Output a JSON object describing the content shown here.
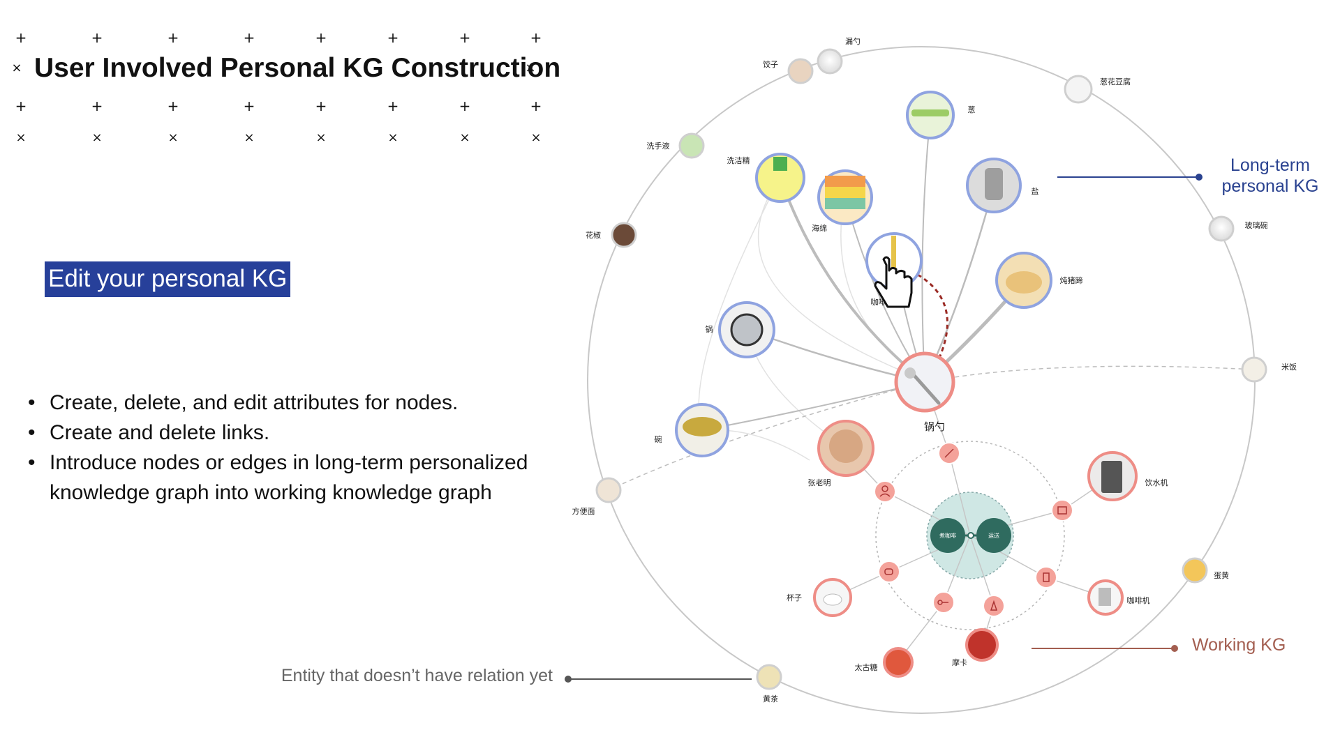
{
  "title": "User Involved Personal KG Construction",
  "marks": {
    "plus": "+",
    "times": "×"
  },
  "edit_label": "Edit your personal KG",
  "bullets": [
    "Create, delete, and edit attributes for nodes.",
    "Create and delete links.",
    "Introduce nodes or edges in long-term personalized knowledge graph into working knowledge graph"
  ],
  "annotations": {
    "long_term": "Long-term personal KG",
    "working": "Working KG",
    "no_relation": "Entity that doesn’t have relation yet"
  },
  "colors": {
    "title_text": "#111111",
    "edit_box_bg": "#27409a",
    "long_term_blue": "#2a4290",
    "working_red": "#a35e50",
    "node_ring_blue": "#8fa3e0",
    "node_ring_red": "#ee8d86",
    "cluster_fill": "#cfe7e4",
    "cluster_dark": "#2f6b5f",
    "dashed_link": "#9a2a24"
  },
  "graph": {
    "outer_nodes": [
      {
        "id": "lou-shao",
        "label": "漏勺"
      },
      {
        "id": "jiaozi",
        "label": "饺子"
      },
      {
        "id": "conghua-doufu",
        "label": "葱花豆腐"
      },
      {
        "id": "xishouye",
        "label": "洗手液"
      },
      {
        "id": "huajiao",
        "label": "花椒"
      },
      {
        "id": "boli-wan",
        "label": "玻璃碗"
      },
      {
        "id": "mifan",
        "label": "米饭"
      },
      {
        "id": "fangbianmian",
        "label": "方便面"
      },
      {
        "id": "danhuang",
        "label": "蛋黄"
      },
      {
        "id": "huangcha",
        "label": "黄茶"
      }
    ],
    "personal_nodes": [
      {
        "id": "cong",
        "label": "葱"
      },
      {
        "id": "xijiejing",
        "label": "洗洁精"
      },
      {
        "id": "haimian",
        "label": "海绵"
      },
      {
        "id": "yan",
        "label": "盐"
      },
      {
        "id": "kafei-shao",
        "label": "咖啡勺"
      },
      {
        "id": "dun-zhuti",
        "label": "炖猪蹄"
      },
      {
        "id": "guo",
        "label": "锅"
      },
      {
        "id": "wan",
        "label": "碗"
      }
    ],
    "center_node": {
      "id": "guo-shao",
      "label": "锅勺"
    },
    "working_nodes": [
      {
        "id": "zhang",
        "label": "张老明"
      },
      {
        "id": "yinshuiji",
        "label": "饮水机"
      },
      {
        "id": "beizi",
        "label": "杯子"
      },
      {
        "id": "kafeiji",
        "label": "咖啡机"
      },
      {
        "id": "taigutang",
        "label": "太古糖"
      },
      {
        "id": "moka",
        "label": "摩卡"
      }
    ],
    "cluster": {
      "left_label": "煮咖啡",
      "right_label": "运送"
    }
  }
}
